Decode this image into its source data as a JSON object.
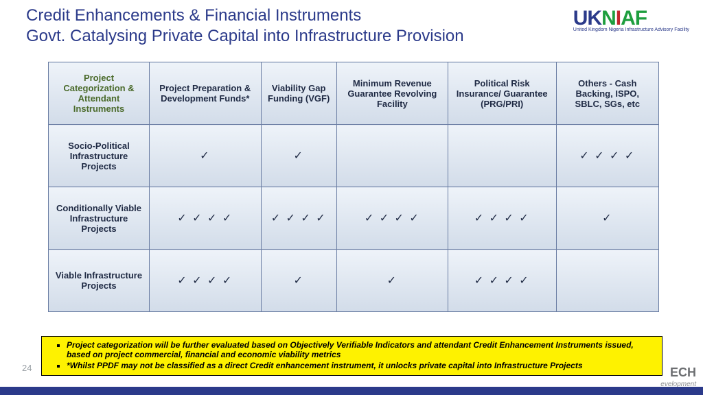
{
  "title": {
    "line1": "Credit Enhancements & Financial Instruments",
    "line2": "Govt. Catalysing Private Capital into Infrastructure Provision",
    "color": "#2b3a8a",
    "fontsize": 24
  },
  "logo": {
    "uk": "UK",
    "n": "N",
    "i": "I",
    "af": "AF",
    "subtitle": "United Kingdom Nigeria Infrastructure Advisory Facility"
  },
  "table": {
    "header_bg_gradient_top": "#eef3f9",
    "header_bg_gradient_bottom": "#d2dce9",
    "border_color": "#6a7da3",
    "first_header_color": "#4a6a2a",
    "columns": [
      "Project Categorization & Attendant Instruments",
      "Project Preparation & Development Funds*",
      "Viability Gap Funding (VGF)",
      "Minimum Revenue Guarantee Revolving Facility",
      "Political Risk Insurance/ Guarantee (PRG/PRI)",
      "Others - Cash Backing, ISPO, SBLC, SGs, etc"
    ],
    "rows": [
      {
        "label": "Socio-Political Infrastructure Projects",
        "cells": [
          1,
          1,
          0,
          0,
          4
        ]
      },
      {
        "label": "Conditionally Viable Infrastructure Projects",
        "cells": [
          4,
          4,
          4,
          4,
          1
        ]
      },
      {
        "label": "Viable Infrastructure Projects",
        "cells": [
          4,
          1,
          1,
          4,
          0
        ]
      }
    ],
    "tick_char": "✓"
  },
  "notes": {
    "bg": "#fef200",
    "items": [
      "Project categorization will be further evaluated based on Objectively Verifiable Indicators and attendant Credit Enhancement Instruments issued, based on project commercial, financial and economic viability metrics",
      "*Whilst PPDF may not be classified as a direct Credit enhancement instrument, it unlocks private capital into Infrastructure Projects"
    ]
  },
  "page_number": "24",
  "footer_logo": {
    "main": "ECH",
    "sub": "evelopment"
  }
}
